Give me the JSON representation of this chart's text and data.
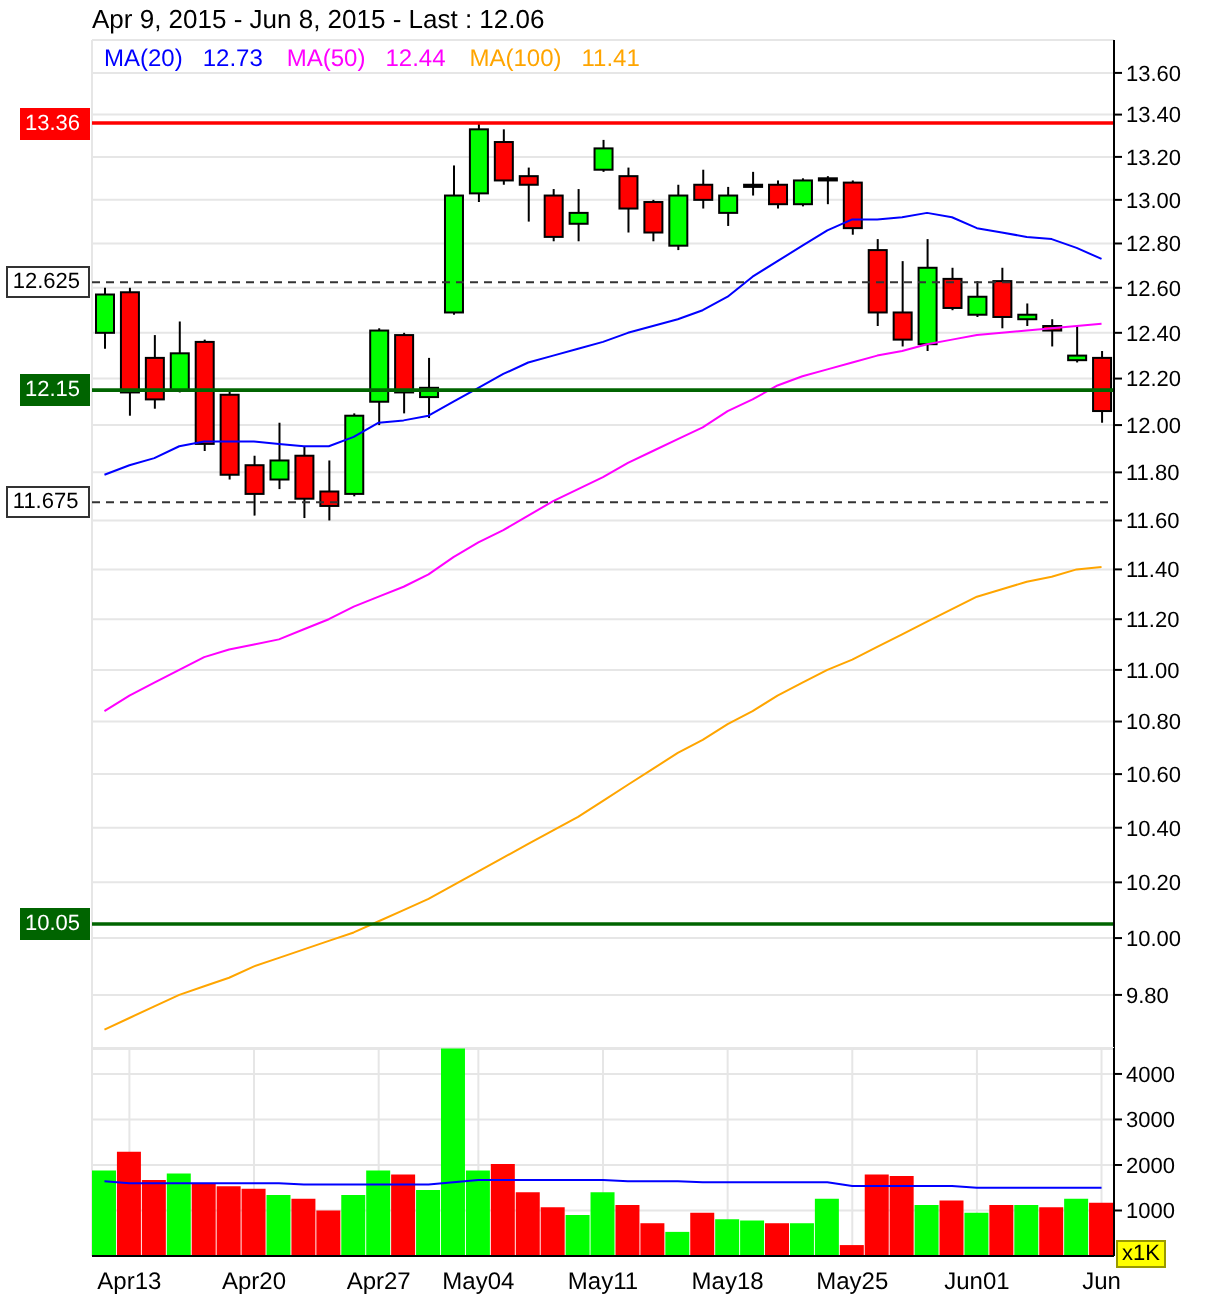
{
  "chart_data": [
    {
      "type": "candlestick",
      "title": "Apr 9, 2015 - Jun 8, 2015 - Last : 12.06",
      "ohlc": [
        [
          12.4,
          12.6,
          12.33,
          12.57
        ],
        [
          12.58,
          12.6,
          12.04,
          12.14
        ],
        [
          12.29,
          12.39,
          12.07,
          12.11
        ],
        [
          12.15,
          12.45,
          12.14,
          12.31
        ],
        [
          12.36,
          12.37,
          11.89,
          11.92
        ],
        [
          12.13,
          12.15,
          11.77,
          11.79
        ],
        [
          11.83,
          11.87,
          11.62,
          11.71
        ],
        [
          11.77,
          12.01,
          11.73,
          11.85
        ],
        [
          11.87,
          11.91,
          11.61,
          11.69
        ],
        [
          11.72,
          11.85,
          11.6,
          11.66
        ],
        [
          11.71,
          12.05,
          11.7,
          12.04
        ],
        [
          12.1,
          12.42,
          12.0,
          12.41
        ],
        [
          12.39,
          12.4,
          12.05,
          12.14
        ],
        [
          12.12,
          12.29,
          12.03,
          12.16
        ],
        [
          12.49,
          13.16,
          12.48,
          13.02
        ],
        [
          13.03,
          13.36,
          12.99,
          13.33
        ],
        [
          13.27,
          13.33,
          13.07,
          13.09
        ],
        [
          13.11,
          13.15,
          12.9,
          13.07
        ],
        [
          13.02,
          13.05,
          12.81,
          12.83
        ],
        [
          12.89,
          13.05,
          12.81,
          12.94
        ],
        [
          13.14,
          13.28,
          13.13,
          13.24
        ],
        [
          13.11,
          13.15,
          12.85,
          12.96
        ],
        [
          12.99,
          13.0,
          12.81,
          12.85
        ],
        [
          12.79,
          13.07,
          12.77,
          13.02
        ],
        [
          13.07,
          13.14,
          12.96,
          13.0
        ],
        [
          12.94,
          13.06,
          12.88,
          13.02
        ],
        [
          13.06,
          13.13,
          13.02,
          13.07
        ],
        [
          13.07,
          13.09,
          12.96,
          12.98
        ],
        [
          12.98,
          13.1,
          12.97,
          13.09
        ],
        [
          13.09,
          13.11,
          12.98,
          13.1
        ],
        [
          13.08,
          13.09,
          12.84,
          12.87
        ],
        [
          12.77,
          12.82,
          12.43,
          12.49
        ],
        [
          12.49,
          12.72,
          12.34,
          12.37
        ],
        [
          12.35,
          12.82,
          12.32,
          12.69
        ],
        [
          12.64,
          12.69,
          12.5,
          12.51
        ],
        [
          12.48,
          12.63,
          12.47,
          12.56
        ],
        [
          12.63,
          12.69,
          12.42,
          12.47
        ],
        [
          12.46,
          12.53,
          12.43,
          12.48
        ],
        [
          12.43,
          12.46,
          12.34,
          12.41
        ],
        [
          12.28,
          12.43,
          12.27,
          12.3
        ],
        [
          12.29,
          12.32,
          12.01,
          12.06
        ]
      ],
      "colors": [
        "#00ff00",
        "#ff0000",
        "#ff0000",
        "#00ff00",
        "#ff0000",
        "#ff0000",
        "#ff0000",
        "#00ff00",
        "#ff0000",
        "#ff0000",
        "#00ff00",
        "#00ff00",
        "#ff0000",
        "#00ff00",
        "#00ff00",
        "#00ff00",
        "#ff0000",
        "#ff0000",
        "#ff0000",
        "#00ff00",
        "#00ff00",
        "#ff0000",
        "#ff0000",
        "#00ff00",
        "#ff0000",
        "#00ff00",
        "#000000",
        "#ff0000",
        "#00ff00",
        "#000000",
        "#ff0000",
        "#ff0000",
        "#ff0000",
        "#00ff00",
        "#ff0000",
        "#00ff00",
        "#ff0000",
        "#00ff00",
        "#ff0000",
        "#00ff00",
        "#ff0000"
      ],
      "series": [
        {
          "name": "MA(20)   12.73",
          "type": "line",
          "color": "#0000ff",
          "values": [
            11.79,
            11.83,
            11.86,
            11.91,
            11.93,
            11.93,
            11.93,
            11.92,
            11.91,
            11.91,
            11.95,
            12.01,
            12.02,
            12.04,
            12.1,
            12.16,
            12.22,
            12.27,
            12.3,
            12.33,
            12.36,
            12.4,
            12.43,
            12.46,
            12.5,
            12.56,
            12.65,
            12.72,
            12.79,
            12.86,
            12.91,
            12.91,
            12.92,
            12.94,
            12.92,
            12.87,
            12.85,
            12.83,
            12.82,
            12.78,
            12.73
          ]
        },
        {
          "name": "MA(50)   12.44",
          "type": "line",
          "color": "#ff00ff",
          "values": [
            10.84,
            10.9,
            10.95,
            11.0,
            11.05,
            11.08,
            11.1,
            11.12,
            11.16,
            11.2,
            11.25,
            11.29,
            11.33,
            11.38,
            11.45,
            11.51,
            11.56,
            11.62,
            11.68,
            11.73,
            11.78,
            11.84,
            11.89,
            11.94,
            11.99,
            12.06,
            12.11,
            12.17,
            12.21,
            12.24,
            12.27,
            12.3,
            12.32,
            12.35,
            12.37,
            12.39,
            12.4,
            12.41,
            12.42,
            12.43,
            12.44
          ]
        },
        {
          "name": "MA(100)   11.41",
          "type": "line",
          "color": "#ffa500",
          "values": [
            9.68,
            9.72,
            9.76,
            9.8,
            9.83,
            9.86,
            9.9,
            9.93,
            9.96,
            9.99,
            10.02,
            10.06,
            10.1,
            10.14,
            10.19,
            10.24,
            10.29,
            10.34,
            10.39,
            10.44,
            10.5,
            10.56,
            10.62,
            10.68,
            10.73,
            10.79,
            10.84,
            10.9,
            10.95,
            11.0,
            11.04,
            11.09,
            11.14,
            11.19,
            11.24,
            11.29,
            11.32,
            11.35,
            11.37,
            11.4,
            11.41
          ]
        }
      ],
      "ylim": [
        9.61,
        13.76
      ],
      "yticks": [
        {
          "value": 9.8,
          "label": "9.80"
        },
        {
          "value": 10,
          "label": "10.00"
        },
        {
          "value": 10.2,
          "label": "10.20"
        },
        {
          "value": 10.4,
          "label": "10.40"
        },
        {
          "value": 10.6,
          "label": "10.60"
        },
        {
          "value": 10.8,
          "label": "10.80"
        },
        {
          "value": 11,
          "label": "11.00"
        },
        {
          "value": 11.2,
          "label": "11.20"
        },
        {
          "value": 11.4,
          "label": "11.40"
        },
        {
          "value": 11.6,
          "label": "11.60"
        },
        {
          "value": 11.8,
          "label": "11.80"
        },
        {
          "value": 12,
          "label": "12.00"
        },
        {
          "value": 12.2,
          "label": "12.20"
        },
        {
          "value": 12.4,
          "label": "12.40"
        },
        {
          "value": 12.6,
          "label": "12.60"
        },
        {
          "value": 12.8,
          "label": "12.80"
        },
        {
          "value": 13,
          "label": "13.00"
        },
        {
          "value": 13.2,
          "label": "13.20"
        },
        {
          "value": 13.4,
          "label": "13.40"
        },
        {
          "value": 13.6,
          "label": "13.60"
        }
      ],
      "log": true,
      "grid": true,
      "legend": "top left",
      "tick_labels": "y",
      "ref_lines": [
        {
          "axis": "y",
          "value": 13.36,
          "label": "13.36",
          "color": "#ff0000"
        },
        {
          "axis": "y",
          "value": 12.625,
          "label": "12.625",
          "color": "#333333",
          "line_style": "dashed"
        },
        {
          "axis": "y",
          "value": 12.15,
          "label": "12.15",
          "color": "#006400"
        },
        {
          "axis": "y",
          "value": 11.675,
          "label": "11.675",
          "color": "#333333",
          "line_style": "dashed"
        },
        {
          "axis": "y",
          "value": 10.05,
          "label": "10.05",
          "color": "#006400"
        }
      ]
    },
    {
      "type": "bar",
      "ylabel": "x1K",
      "categories": [
        null,
        "Apr13",
        null,
        null,
        null,
        null,
        "Apr20",
        null,
        null,
        null,
        null,
        "Apr27",
        null,
        null,
        null,
        "May04",
        null,
        null,
        null,
        null,
        "May11",
        null,
        null,
        null,
        null,
        "May18",
        null,
        null,
        null,
        null,
        "May25",
        null,
        null,
        null,
        null,
        "Jun01",
        null,
        null,
        null,
        null,
        "Jun"
      ],
      "series": [
        {
          "type": "bar",
          "colors": [
            "#00ff00",
            "#ff0000",
            "#ff0000",
            "#00ff00",
            "#ff0000",
            "#ff0000",
            "#ff0000",
            "#00ff00",
            "#ff0000",
            "#ff0000",
            "#00ff00",
            "#00ff00",
            "#ff0000",
            "#00ff00",
            "#00ff00",
            "#00ff00",
            "#ff0000",
            "#ff0000",
            "#ff0000",
            "#00ff00",
            "#00ff00",
            "#ff0000",
            "#ff0000",
            "#00ff00",
            "#ff0000",
            "#00ff00",
            "#00ff00",
            "#ff0000",
            "#00ff00",
            "#00ff00",
            "#ff0000",
            "#ff0000",
            "#ff0000",
            "#00ff00",
            "#ff0000",
            "#00ff00",
            "#ff0000",
            "#00ff00",
            "#ff0000",
            "#00ff00",
            "#ff0000"
          ],
          "values": [
            1880,
            2290,
            1670,
            1810,
            1590,
            1530,
            1480,
            1340,
            1260,
            1000,
            1340,
            1880,
            1790,
            1450,
            4560,
            1880,
            2020,
            1400,
            1070,
            900,
            1400,
            1120,
            720,
            530,
            950,
            810,
            780,
            720,
            720,
            1260,
            240,
            1790,
            1760,
            1120,
            1220,
            950,
            1120,
            1120,
            1070,
            1260,
            1170
          ]
        },
        {
          "type": "line",
          "color": "#0000ff",
          "values": [
            1640,
            1600,
            1600,
            1600,
            1600,
            1600,
            1600,
            1600,
            1570,
            1570,
            1570,
            1570,
            1570,
            1570,
            1620,
            1670,
            1670,
            1670,
            1670,
            1670,
            1670,
            1640,
            1640,
            1640,
            1620,
            1620,
            1620,
            1620,
            1620,
            1620,
            1540,
            1540,
            1540,
            1540,
            1540,
            1500,
            1500,
            1500,
            1500,
            1500,
            1500
          ]
        }
      ],
      "ylim": [
        0,
        4570
      ],
      "yticks": [
        1000,
        2000,
        3000,
        4000
      ],
      "grid": true
    }
  ]
}
